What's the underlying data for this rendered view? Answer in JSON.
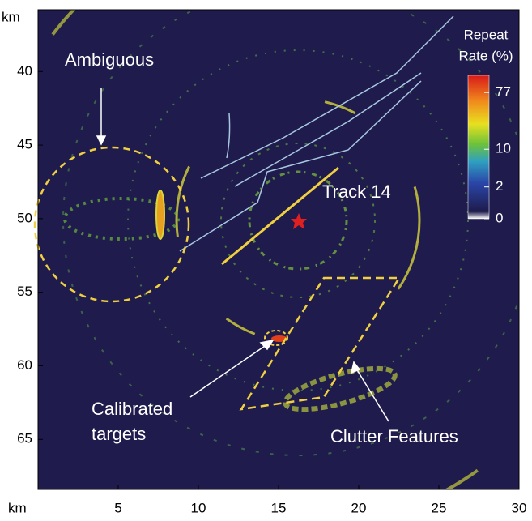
{
  "chart_data": {
    "type": "image",
    "xlabel": "km",
    "ylabel": "km",
    "xlim": [
      0,
      30
    ],
    "ylim": [
      35.8,
      68.4
    ],
    "xticks": [
      5,
      10,
      15,
      20,
      25,
      30
    ],
    "yticks": [
      40,
      45,
      50,
      55,
      60,
      65
    ],
    "colorbar": {
      "title": [
        "Repeat",
        "Rate (%)"
      ],
      "scale": "log1p",
      "clim": [
        0,
        140
      ],
      "ticks": [
        0,
        2,
        10,
        77
      ]
    },
    "annotations": {
      "ambiguous": "Ambiguous",
      "track": "Track 14",
      "calibrated": [
        "Calibrated",
        "targets"
      ],
      "clutter": "Clutter Features"
    }
  }
}
